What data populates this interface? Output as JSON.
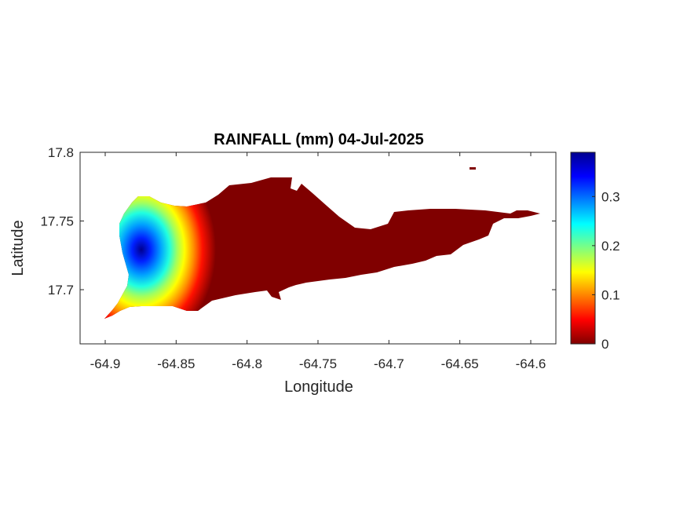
{
  "chart_data": {
    "type": "heatmap",
    "title": "RAINFALL (mm) 04-Jul-2025",
    "xlabel": "Longitude",
    "ylabel": "Latitude",
    "xlim": [
      -64.92,
      -64.55
    ],
    "ylim": [
      17.66,
      17.8
    ],
    "xticks": [
      -64.9,
      -64.85,
      -64.8,
      -64.75,
      -64.7,
      -64.65,
      -64.6
    ],
    "xtick_labels": [
      "-64.9",
      "-64.85",
      "-64.8",
      "-64.75",
      "-64.7",
      "-64.65",
      "-64.6"
    ],
    "yticks": [
      17.7,
      17.75,
      17.8
    ],
    "ytick_labels": [
      "17.7",
      "17.75",
      "17.8"
    ],
    "colormap": "jet",
    "colorbar": {
      "range": [
        0,
        0.39
      ],
      "ticks": [
        0,
        0.1,
        0.2,
        0.3
      ],
      "tick_labels": [
        "0",
        "0.1",
        "0.2",
        "0.3"
      ]
    },
    "grid": false,
    "rainfall_peak": {
      "lon": -64.874,
      "lat": 17.728,
      "value": 0.38
    },
    "background_value": 0
  },
  "colors": {
    "low": "#800000",
    "high": "#00008f",
    "axis": "#262626"
  }
}
